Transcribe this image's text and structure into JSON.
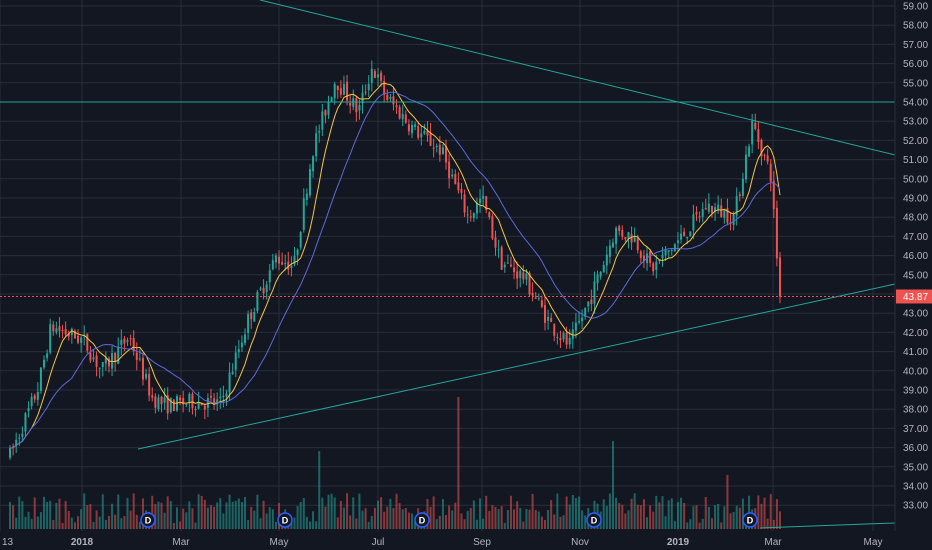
{
  "chart_data": {
    "type": "candlestick",
    "y_axis": {
      "ticks": [
        "59.00",
        "58.00",
        "57.00",
        "56.00",
        "55.00",
        "54.00",
        "53.00",
        "52.00",
        "51.00",
        "50.00",
        "49.00",
        "48.00",
        "47.00",
        "46.00",
        "45.00",
        "44.00",
        "43.00",
        "42.00",
        "41.00",
        "40.00",
        "39.00",
        "38.00",
        "37.00",
        "36.00",
        "35.00",
        "34.00",
        "33.00"
      ],
      "range": [
        32.7,
        59.1
      ],
      "position": "right"
    },
    "x_axis": {
      "ticks": [
        {
          "label": "13",
          "bold": false
        },
        {
          "label": "2018",
          "bold": true
        },
        {
          "label": "Mar",
          "bold": false
        },
        {
          "label": "May",
          "bold": false
        },
        {
          "label": "Jul",
          "bold": false
        },
        {
          "label": "Sep",
          "bold": false
        },
        {
          "label": "Nov",
          "bold": false
        },
        {
          "label": "2019",
          "bold": true
        },
        {
          "label": "Mar",
          "bold": false
        },
        {
          "label": "May",
          "bold": false
        }
      ]
    },
    "last_price": "43.87",
    "price_path": [
      {
        "t": 0,
        "p": 35.6
      },
      {
        "t": 0.03,
        "p": 39.0
      },
      {
        "t": 0.045,
        "p": 42.3
      },
      {
        "t": 0.08,
        "p": 41.6
      },
      {
        "t": 0.1,
        "p": 40.0
      },
      {
        "t": 0.13,
        "p": 41.8
      },
      {
        "t": 0.155,
        "p": 38.6
      },
      {
        "t": 0.17,
        "p": 38.2
      },
      {
        "t": 0.2,
        "p": 38.4
      },
      {
        "t": 0.23,
        "p": 38.3
      },
      {
        "t": 0.26,
        "p": 42.7
      },
      {
        "t": 0.29,
        "p": 45.9
      },
      {
        "t": 0.31,
        "p": 45.5
      },
      {
        "t": 0.33,
        "p": 51.5
      },
      {
        "t": 0.355,
        "p": 55.2
      },
      {
        "t": 0.38,
        "p": 53.5
      },
      {
        "t": 0.395,
        "p": 55.8
      },
      {
        "t": 0.41,
        "p": 54.3
      },
      {
        "t": 0.44,
        "p": 52.6
      },
      {
        "t": 0.47,
        "p": 51.5
      },
      {
        "t": 0.5,
        "p": 48.0
      },
      {
        "t": 0.515,
        "p": 49.0
      },
      {
        "t": 0.535,
        "p": 45.7
      },
      {
        "t": 0.56,
        "p": 44.9
      },
      {
        "t": 0.59,
        "p": 42.4
      },
      {
        "t": 0.61,
        "p": 41.3
      },
      {
        "t": 0.635,
        "p": 44.0
      },
      {
        "t": 0.66,
        "p": 47.3
      },
      {
        "t": 0.68,
        "p": 47.0
      },
      {
        "t": 0.7,
        "p": 45.3
      },
      {
        "t": 0.73,
        "p": 46.8
      },
      {
        "t": 0.76,
        "p": 48.6
      },
      {
        "t": 0.79,
        "p": 48.0
      },
      {
        "t": 0.81,
        "p": 52.9
      },
      {
        "t": 0.83,
        "p": 50.2
      },
      {
        "t": 0.84,
        "p": 43.87
      }
    ],
    "annotations": [
      {
        "type": "horizontal-line",
        "value": 54.0,
        "color": "#26a69a"
      },
      {
        "type": "trendline",
        "name": "descending-resistance",
        "color": "#26a69a"
      },
      {
        "type": "trendline",
        "name": "ascending-support",
        "color": "#26a69a"
      }
    ],
    "dividend_markers": [
      "D",
      "D",
      "D",
      "D",
      "D"
    ],
    "grid": true,
    "colors": {
      "background": "#131722",
      "grid": "#2a2e39",
      "up": "#26a69a",
      "down": "#ef5350",
      "ma_fast": "#f5c542",
      "ma_slow": "#5b6bd6",
      "trendline": "#26a69a",
      "price_tag": "#ef5350",
      "axis_text": "#b2b5be",
      "dividend_marker": "#2962ff"
    }
  }
}
